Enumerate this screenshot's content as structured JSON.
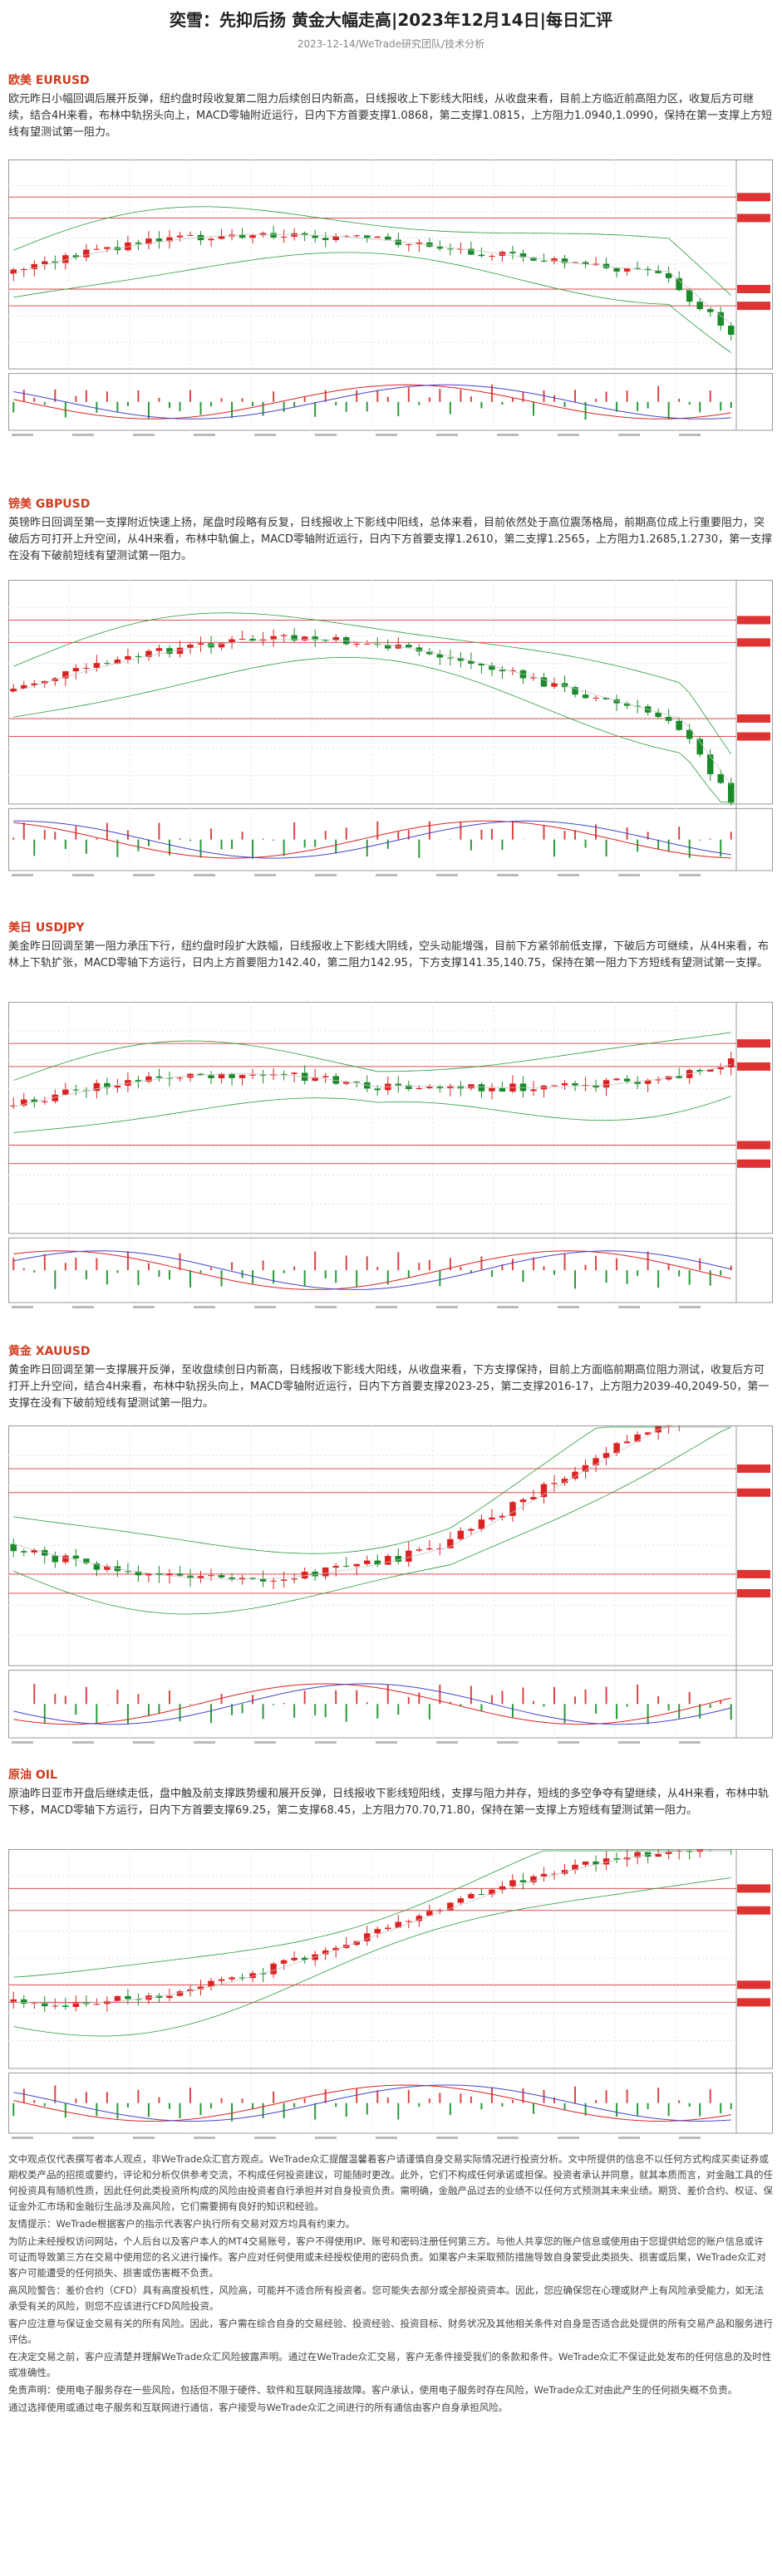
{
  "header": {
    "title": "奕雪：先抑后扬 黄金大幅走高|2023年12月14日|每日汇评",
    "subtitle": "2023-12-14/WeTrade研究团队/技术分析"
  },
  "sections": [
    {
      "heading": "欧美 EURUSD",
      "text": "欧元昨日小幅回调后展开反弹，纽约盘时段收复第二阻力后续创日内新高，日线报收上下影线大阳线，从收盘来看，目前上方临近前高阻力区，收复后方可继续，结合4H来看，布林中轨拐头向上，MACD零轴附近运行，日内下方首要支撑1.0868，第二支撑1.0815，上方阻力1.0940,1.0990，保持在第一支撑上方短线有望测试第一阻力。"
    },
    {
      "heading": "镑美 GBPUSD",
      "text": "英镑昨日回调至第一支撑附近快速上扬，尾盘时段略有反复，日线报收上下影线中阳线，总体来看，目前依然处于高位震荡格局，前期高位成上行重要阻力，突破后方可打开上升空间，从4H来看，布林中轨偏上，MACD零轴附近运行，日内下方首要支撑1.2610，第二支撑1.2565，上方阻力1.2685,1.2730，第一支撑在没有下破前短线有望测试第一阻力。"
    },
    {
      "heading": "美日 USDJPY",
      "text": "美金昨日回调至第一阻力承压下行，纽约盘时段扩大跌幅，日线报收上下影线大阴线，空头动能增强，目前下方紧邻前低支撑，下破后方可继续，从4H来看，布林上下轨扩张，MACD零轴下方运行，日内上方首要阻力142.40，第二阻力142.95，下方支撑141.35,140.75，保持在第一阻力下方短线有望测试第一支撑。"
    },
    {
      "heading": "黄金 XAUUSD",
      "text": "黄金昨日回调至第一支撑展开反弹，至收盘续创日内新高，日线报收下影线大阳线，从收盘来看，下方支撑保持，目前上方面临前期高位阻力测试，收复后方可打开上升空间，结合4H来看，布林中轨拐头向上，MACD零轴附近运行，日内下方首要支撑2023-25，第二支撑2016-17，上方阻力2039-40,2049-50，第一支撑在没有下破前短线有望测试第一阻力。"
    },
    {
      "heading": "原油 OIL",
      "text": "原油昨日亚市开盘后继续走低，盘中触及前支撑跌势缓和展开反弹，日线报收下影线短阳线，支撑与阻力并存，短线的多空争夺有望继续，从4H来看，布林中轨下移，MACD零轴下方运行，日内下方首要支撑69.25，第二支撑68.45，上方阻力70.70,71.80，保持在第一支撑上方短线有望测试第一阻力。"
    }
  ],
  "disclaimer": [
    "文中观点仅代表撰写者本人观点，非WeTrade众汇官方观点。WeTrade众汇提醒温馨着客户请谨慎自身交易实际情况进行投资分析。文中所提供的信息不以任何方式构成买卖证券或期权类产品的招揽或要约，评论和分析仅供参考交流，不构成任何投资建议，可能随时更改。此外，它们不构成任何承诺或担保。投资者承认并同意，就其本质而言，对金融工具的任何投资具有随机性质，因此任何此类投资所构成的风险由投资者自行承担并对自身投资负责。需明确，金融产品过去的业绩不以任何方式预测其未来业绩。期货、差价合约、权证、保证金外汇市场和金融衍生品涉及高风险，它们需要拥有良好的知识和经验。",
    "友情提示：WeTrade根据客户的指示代表客户执行所有交易对双方均具有约束力。",
    "为防止未经授权访问网站，个人后台以及客户本人的MT4交易账号，客户不得使用IP、账号和密码注册任何第三方。与他人共享您的账户信息或使用由于您提供给您的账户信息或许可证而导致第三方在交易中使用您的名义进行操作。客户应对任何使用或未经授权使用的密码负责。如果客户未采取预防措施导致自身蒙受此类损失、损害或后果，WeTrade众汇对客户可能遭受的任何损失、损害或伤害概不负责。",
    "高风险警告：差价合约（CFD）具有高度投机性，风险高，可能并不适合所有投资者。您可能失去部分或全部投资资本。因此，您应确保您在心理或财产上有风险承受能力，如无法承受有关的风险，则您不应该进行CFD风险投资。",
    "客户应注意与保证金交易有关的所有风险。因此，客户需在综合自身的交易经验、投资经验、投资目标、财务状况及其他相关条件对自身是否适合此处提供的所有交易产品和服务进行评估。",
    "在决定交易之前，客户应清楚并理解WeTrade众汇风险披露声明。通过在WeTrade众汇交易，客户无条件接受我们的条款和条件。WeTrade众汇不保证此处发布的任何信息的及时性或准确性。",
    "免责声明：使用电子服务存在一些风险，包括但不限于硬件、软件和互联网连接故障。客户承认，使用电子服务时存在风险，WeTrade众汇对由此产生的任何损失概不负责。",
    "通过选择使用或通过电子服务和互联网进行通信，客户接受与WeTrade众汇之间进行的所有通信由客户自身承担风险。"
  ]
}
